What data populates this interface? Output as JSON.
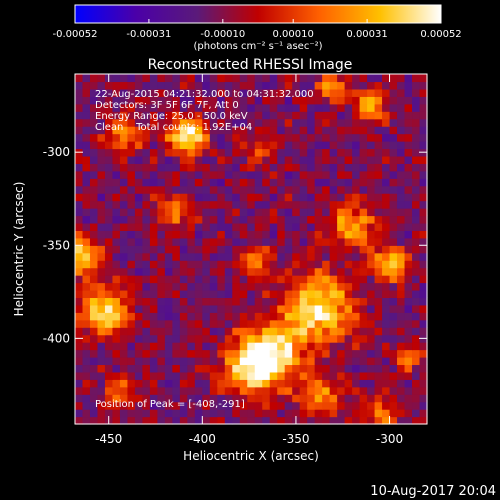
{
  "colorbar": {
    "ticks": [
      "-0.00052",
      "-0.00031",
      "-0.00010",
      "0.00010",
      "0.00031",
      "0.00052"
    ],
    "tick_values": [
      -0.00052,
      -0.00031,
      -0.0001,
      0.0001,
      0.00031,
      0.00052
    ],
    "range": [
      -0.00052,
      0.00052
    ],
    "units": "(photons cm⁻² s⁻¹ asec⁻²)",
    "colors": [
      "#0000ff",
      "#4b00a8",
      "#5a1a7a",
      "#c00000",
      "#ff6000",
      "#ffc000",
      "#ffffff"
    ]
  },
  "title": "Reconstructed RHESSI Image",
  "info": {
    "line1": "22-Aug-2015 04:21:32.000 to 04:31:32.000",
    "line2": "Detectors: 3F 5F 6F 7F, Att 0",
    "line3": "Energy Range: 25.0 - 50.0 keV",
    "line4": "Clean    Total counts: 1.92E+04"
  },
  "peak_label": "Position of Peak = [-408,-291]",
  "footer_timestamp": "10-Aug-2017 20:04",
  "chart_data": {
    "type": "heatmap",
    "title": "Reconstructed RHESSI Image",
    "xlabel": "Heliocentric X (arcsec)",
    "ylabel": "Heliocentric Y (arcsec)",
    "xlim": [
      -468,
      -280
    ],
    "ylim": [
      -446,
      -258
    ],
    "x_ticks": [
      -450,
      -400,
      -350,
      -300
    ],
    "y_ticks": [
      -300,
      -350,
      -400
    ],
    "x_tick_labels": [
      "-450",
      "-400",
      "-350",
      "-300"
    ],
    "y_tick_labels": [
      "-300",
      "-350",
      "-400"
    ],
    "cell_size_arcsec": 4,
    "peak_position": [
      -408,
      -291
    ],
    "bright_sources": [
      {
        "x": -338,
        "y": -383,
        "value": 0.00046,
        "sigma": 13
      },
      {
        "x": -362,
        "y": -408,
        "value": 0.00044,
        "sigma": 11
      },
      {
        "x": -375,
        "y": -415,
        "value": 0.00038,
        "sigma": 10
      },
      {
        "x": -408,
        "y": -291,
        "value": 0.0005,
        "sigma": 7
      },
      {
        "x": -452,
        "y": -385,
        "value": 0.00044,
        "sigma": 9
      },
      {
        "x": -465,
        "y": -355,
        "value": 0.00042,
        "sigma": 7
      },
      {
        "x": -320,
        "y": -340,
        "value": 0.00032,
        "sigma": 8
      },
      {
        "x": -300,
        "y": -360,
        "value": 0.0004,
        "sigma": 6
      },
      {
        "x": -310,
        "y": -275,
        "value": 0.0003,
        "sigma": 6
      },
      {
        "x": -330,
        "y": -265,
        "value": 0.0003,
        "sigma": 5
      },
      {
        "x": -442,
        "y": -290,
        "value": 0.00022,
        "sigma": 7
      },
      {
        "x": -415,
        "y": -332,
        "value": 0.0002,
        "sigma": 7
      },
      {
        "x": -372,
        "y": -358,
        "value": 0.0002,
        "sigma": 6
      },
      {
        "x": -338,
        "y": -430,
        "value": 0.00024,
        "sigma": 8
      },
      {
        "x": -445,
        "y": -428,
        "value": 0.00018,
        "sigma": 6
      },
      {
        "x": -305,
        "y": -440,
        "value": 0.00022,
        "sigma": 6
      },
      {
        "x": -290,
        "y": -410,
        "value": 0.00018,
        "sigma": 5
      },
      {
        "x": -370,
        "y": -300,
        "value": 0.00012,
        "sigma": 6
      }
    ],
    "background_level": -0.00012,
    "grid": false
  }
}
